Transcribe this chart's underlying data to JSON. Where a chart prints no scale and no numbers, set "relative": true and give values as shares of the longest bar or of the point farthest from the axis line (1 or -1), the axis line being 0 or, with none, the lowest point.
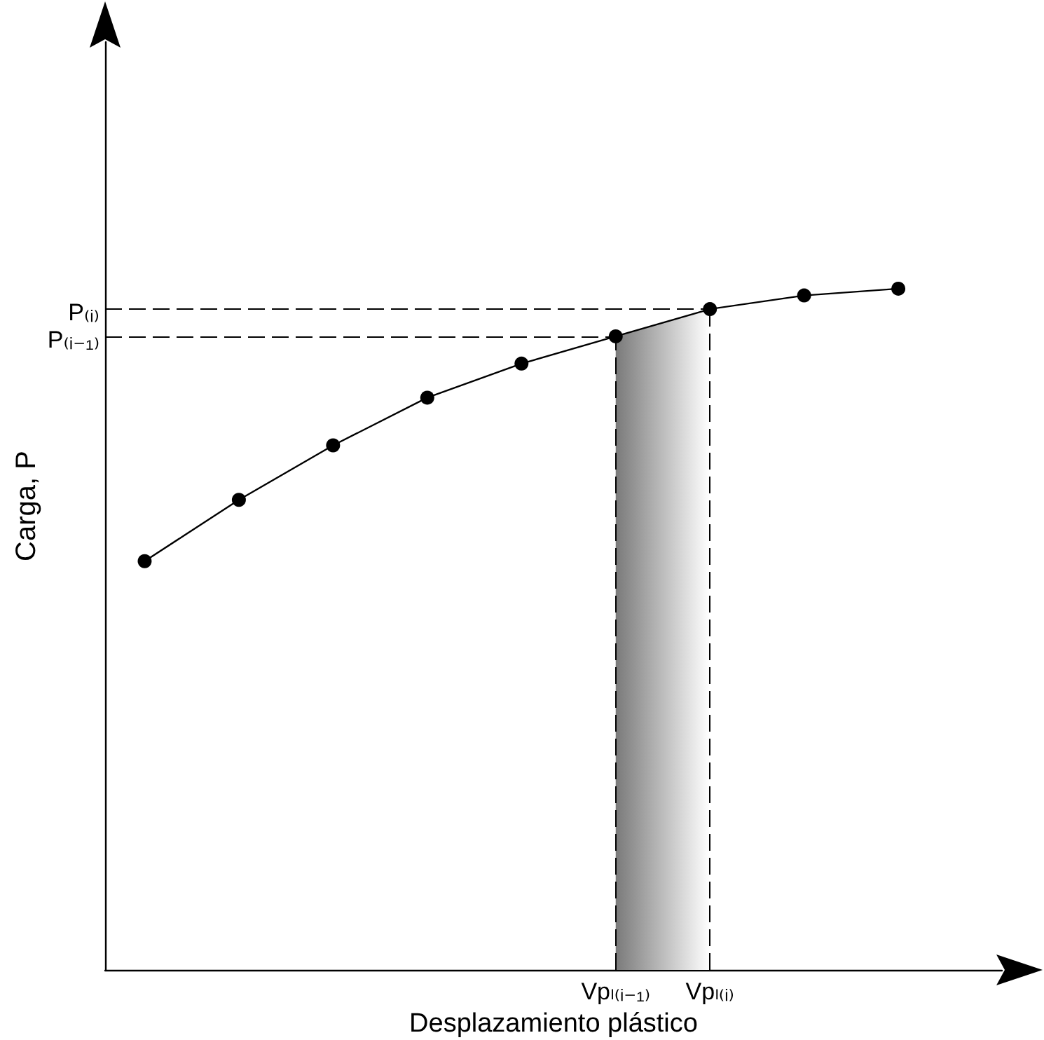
{
  "chart_data": {
    "type": "line",
    "relative": true,
    "xlabel": "Desplazamiento plástico",
    "ylabel": "Carga, P",
    "categories": [
      null,
      null,
      null,
      null,
      null,
      "Vpₗ₍ᵢ₋₁₎",
      "Vpₗ₍ᵢ₎",
      null,
      null
    ],
    "series": [
      {
        "color": "#000000",
        "values": [
          0.6,
          0.69,
          0.77,
          0.84,
          0.89,
          0.93,
          0.97,
          0.99,
          1.0
        ]
      }
    ],
    "marker": "circle",
    "line_style": "solid",
    "grid": false,
    "tick_labels": "x",
    "ref_lines": [
      {
        "axis": "y",
        "value": 0.97,
        "label": "P₍ᵢ₎",
        "line_style": "dashed"
      },
      {
        "axis": "y",
        "value": 0.93,
        "label": "P₍ᵢ₋₁₎",
        "line_style": "dashed"
      },
      {
        "axis": "x",
        "value": "Vpₗ₍ᵢ₋₁₎",
        "line_style": "dashed"
      },
      {
        "axis": "x",
        "value": "Vpₗ₍ᵢ₎",
        "line_style": "dashed"
      }
    ],
    "bands": [
      {
        "axis": "x",
        "from": "Vpₗ₍ᵢ₋₁₎",
        "to": "Vpₗ₍ᵢ₎",
        "color": "#7a7a7a"
      }
    ]
  }
}
